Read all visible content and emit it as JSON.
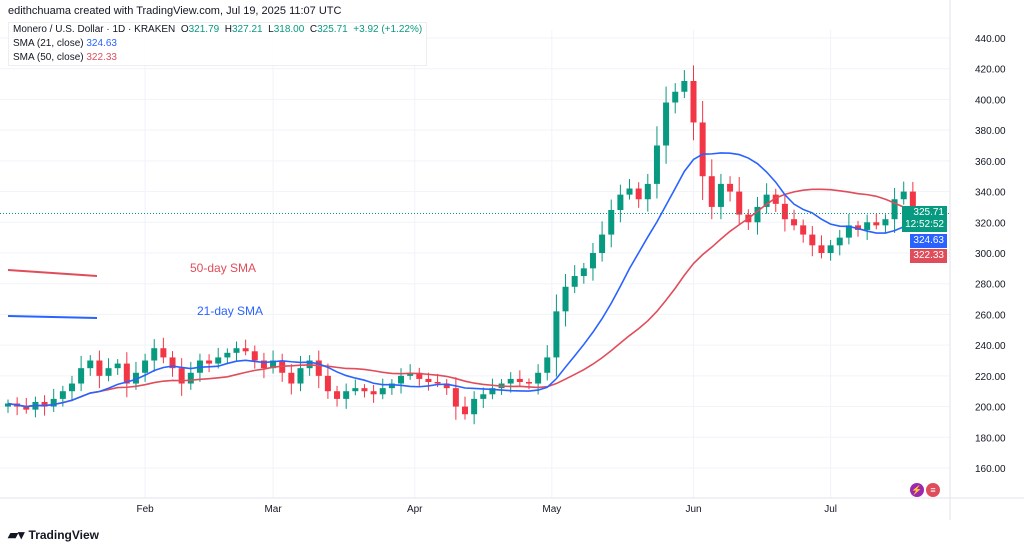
{
  "credit": "edithchuama created with TradingView.com, Jul 19, 2025 11:07 UTC",
  "legend": {
    "symbol": "Monero / U.S. Dollar · 1D · KRAKEN",
    "o_label": "O",
    "o": "321.79",
    "h_label": "H",
    "h": "327.21",
    "l_label": "L",
    "l": "318.00",
    "c_label": "C",
    "c": "325.71",
    "change": "+3.92 (+1.22%)",
    "sma21_label": "SMA (21, close)",
    "sma21": "324.63",
    "sma50_label": "SMA (50, close)",
    "sma50": "322.33"
  },
  "price_tags": {
    "last": "325.71",
    "countdown": "12:52:52",
    "sma21": "324.63",
    "sma50": "322.33"
  },
  "annotations": {
    "sma50": "50-day SMA",
    "sma21": "21-day SMA"
  },
  "brand": "TradingView",
  "colors": {
    "up": "#089981",
    "down": "#f23645",
    "sma21": "#2962ff",
    "sma50": "#e04d5a"
  },
  "chart_data": {
    "type": "candlestick",
    "title": "Monero / U.S. Dollar · 1D · KRAKEN",
    "ylim": [
      150,
      450
    ],
    "y_ticks": [
      "160.00",
      "180.00",
      "200.00",
      "220.00",
      "240.00",
      "260.00",
      "280.00",
      "300.00",
      "320.00",
      "340.00",
      "360.00",
      "380.00",
      "400.00",
      "420.00",
      "440.00"
    ],
    "x_ticks": [
      {
        "label": "Feb",
        "day": 30
      },
      {
        "label": "Mar",
        "day": 58
      },
      {
        "label": "Apr",
        "day": 89
      },
      {
        "label": "May",
        "day": 119
      },
      {
        "label": "Jun",
        "day": 150
      },
      {
        "label": "Jul",
        "day": 180
      }
    ],
    "start_date": "2025-01-02",
    "step_days": 2,
    "closes": [
      202,
      200,
      198,
      203,
      200,
      205,
      210,
      215,
      225,
      230,
      220,
      225,
      228,
      215,
      222,
      230,
      238,
      232,
      225,
      215,
      222,
      230,
      228,
      232,
      235,
      238,
      236,
      230,
      225,
      230,
      222,
      215,
      225,
      230,
      220,
      210,
      205,
      210,
      212,
      210,
      208,
      212,
      215,
      220,
      222,
      218,
      216,
      215,
      212,
      200,
      195,
      205,
      208,
      212,
      215,
      218,
      216,
      215,
      222,
      232,
      262,
      278,
      285,
      290,
      300,
      312,
      328,
      338,
      342,
      335,
      345,
      370,
      398,
      405,
      412,
      385,
      350,
      330,
      345,
      340,
      325,
      320,
      330,
      338,
      332,
      322,
      318,
      312,
      305,
      300,
      305,
      310,
      318,
      315,
      320,
      318,
      322,
      335,
      340,
      325.71
    ],
    "sma_periods_days": [
      21,
      50
    ],
    "last_price": 325.71
  }
}
